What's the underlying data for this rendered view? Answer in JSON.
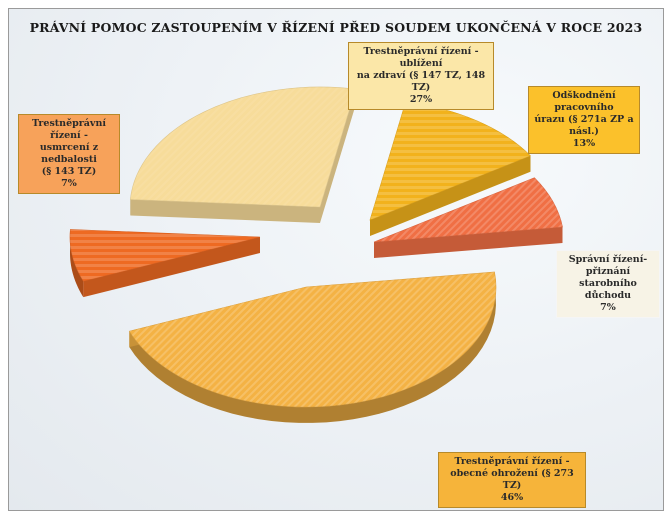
{
  "chart_data": {
    "type": "pie",
    "title": "PRÁVNÍ POMOC ZASTOUPENÍM V ŘÍZENÍ PŘED SOUDEM UKONČENÁ V ROCE 2023",
    "slices": [
      {
        "label_lines": [
          "Trestněprávní řízení - ublížení",
          "na zdraví (§ 147 TZ, 148 TZ)"
        ],
        "value": 27,
        "value_text": "27%",
        "color": "#f7dc9a"
      },
      {
        "label_lines": [
          "Odškodnění pracovního",
          "úrazu (§ 271a ZP a násl.)"
        ],
        "value": 13,
        "value_text": "13%",
        "color": "#f2b21c"
      },
      {
        "label_lines": [
          "Správní řízení-přiznání",
          "starobního důchodu"
        ],
        "value": 7,
        "value_text": "7%",
        "color": "#f06f44"
      },
      {
        "label_lines": [
          "Trestněprávní řízení -",
          "obecné ohrožení (§ 273 TZ)"
        ],
        "value": 46,
        "value_text": "46%",
        "color": "#f4b244"
      },
      {
        "label_lines": [
          "Trestněprávní řízení -",
          "usmrcení z nedbalosti",
          "(§ 143 TZ)"
        ],
        "value": 7,
        "value_text": "7%",
        "color": "#ee6a22"
      }
    ]
  }
}
